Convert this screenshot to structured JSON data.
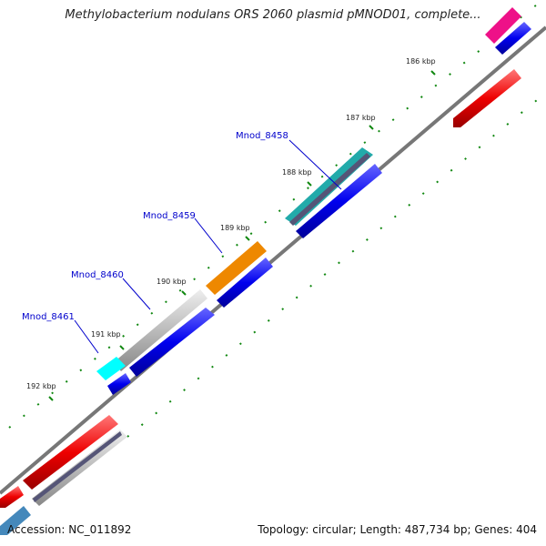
{
  "title": "Methylobacterium nodulans ORS 2060 plasmid pMNOD01, complete...",
  "footer": {
    "accession": "Accession: NC_011892",
    "stats": "Topology: circular; Length: 487,734 bp; Genes: 404"
  },
  "ticks": [
    {
      "label": "186 kbp"
    },
    {
      "label": "187 kbp"
    },
    {
      "label": "188 kbp"
    },
    {
      "label": "189 kbp"
    },
    {
      "label": "190 kbp"
    },
    {
      "label": "191 kbp"
    },
    {
      "label": "192 kbp"
    }
  ],
  "genes": [
    {
      "label": "Mnod_8458"
    },
    {
      "label": "Mnod_8459"
    },
    {
      "label": "Mnod_8460"
    },
    {
      "label": "Mnod_8461"
    }
  ],
  "colors": {
    "backbone": "#808080",
    "cds": "#0000ee",
    "red": "#ee0000",
    "pink": "#ee1188",
    "teal": "#22aaaa",
    "orange": "#ee8800",
    "gray": "#bbbbbb",
    "cyan": "#00ffff",
    "slate": "#555577",
    "steel": "#4488bb",
    "tick_marks": "#118811"
  }
}
